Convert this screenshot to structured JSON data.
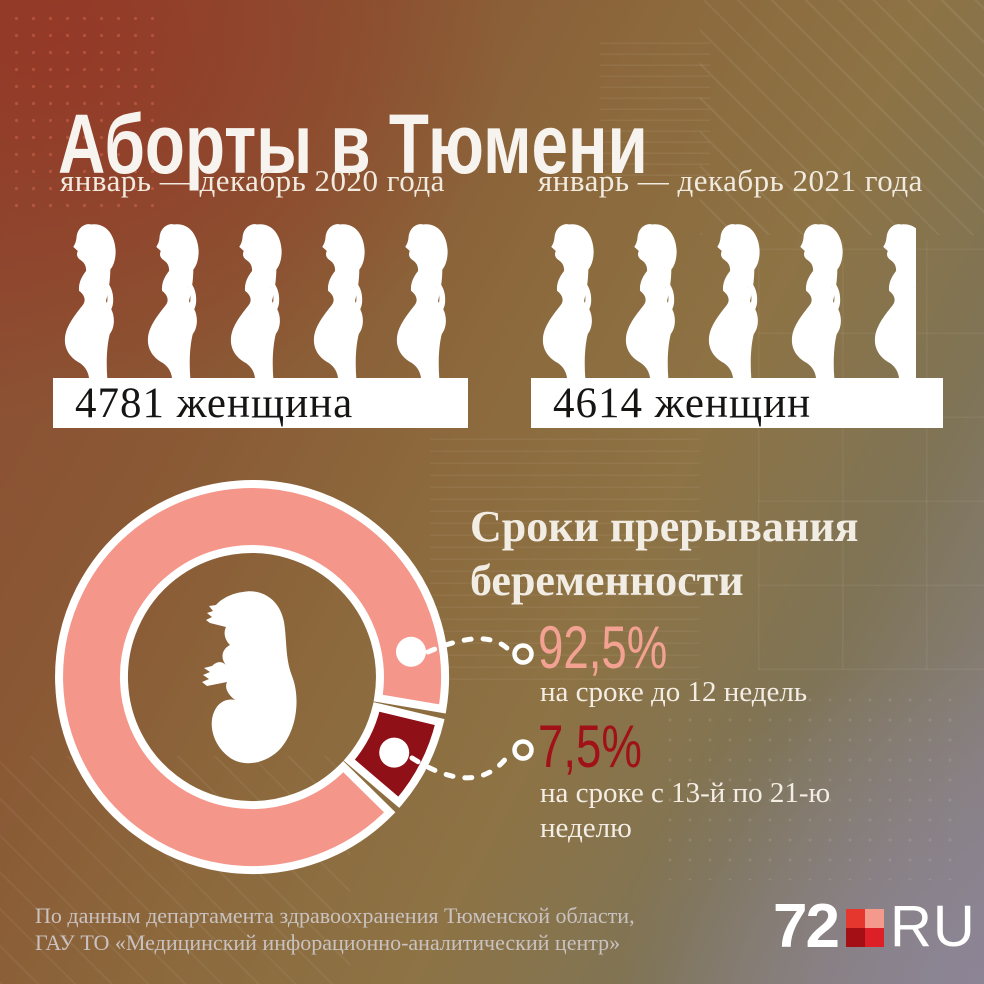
{
  "title": "Аборты в Тюмени",
  "columns": [
    {
      "period": "январь — декабрь 2020 года",
      "value": 4781,
      "unit_per_figure": 1000,
      "count_label": "4781 женщина"
    },
    {
      "period": "январь — декабрь 2021 года",
      "value": 4614,
      "unit_per_figure": 1000,
      "count_label": "4614 женщин"
    }
  ],
  "chart_data": {
    "type": "pie",
    "donut": true,
    "title": "Сроки прерывания беременности",
    "title_lines": [
      "Сроки прерывания",
      "беременности"
    ],
    "slices": [
      {
        "label": "на сроке до 12 недель",
        "label_lines": [
          "на сроке до 12 недель",
          ""
        ],
        "value": 92.5,
        "display": "92,5%",
        "color": "#F5968A"
      },
      {
        "label": "на сроке с 13-й по 21-ю неделю",
        "label_lines": [
          "на сроке с 13-й по 21-ю",
          "неделю"
        ],
        "value": 7.5,
        "display": "7,5%",
        "color": "#8F1016"
      }
    ],
    "center_icon": "fetus-icon",
    "legend_position": "right"
  },
  "colors": {
    "pink": "#F5968A",
    "pink_text": "#F2A192",
    "dark_red": "#8F1016",
    "dark_red_text": "#A01218",
    "bar_background": "#FFFFFF",
    "bar_text": "#161514"
  },
  "footer": {
    "line1": "По данным департамента здравоохранения Тюменской области,",
    "line2": "ГАУ ТО «Медицинский инфорационно-аналитический центр»"
  },
  "logo": {
    "prefix": "72",
    "suffix": "RU",
    "square_colors": [
      "#E5372E",
      "#F49A8C",
      "#A40E15",
      "#DD1F27"
    ]
  }
}
